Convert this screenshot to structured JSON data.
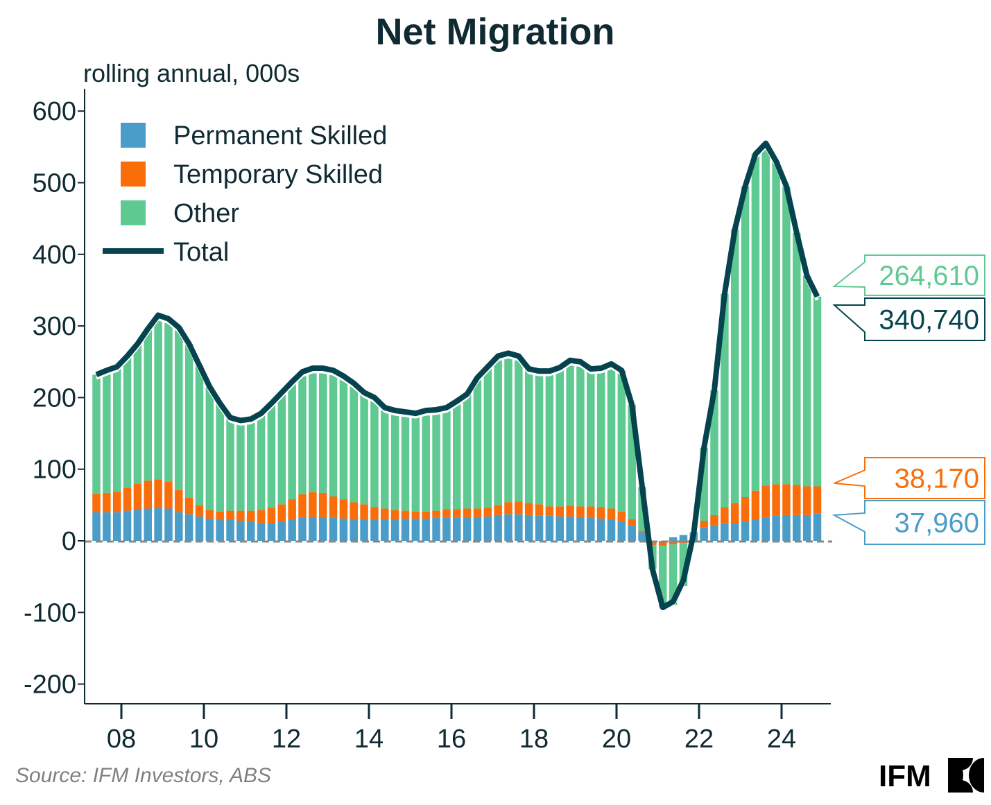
{
  "chart_data": {
    "type": "bar",
    "stacked": true,
    "title": "Net Migration",
    "subtitle": "rolling annual, 000s",
    "xlabel": "",
    "ylabel": "rolling annual, 000s",
    "ylim": [
      -220,
      620
    ],
    "yticks": [
      600,
      500,
      400,
      300,
      200,
      100,
      0,
      -100,
      -200
    ],
    "ytick_labels": [
      "600",
      "500",
      "400",
      "300",
      "200",
      "100",
      "0",
      "-100",
      "-200"
    ],
    "xticks_year_index": [
      2008,
      2010,
      2012,
      2014,
      2016,
      2018,
      2020,
      2022,
      2024
    ],
    "xtick_labels": [
      "08",
      "10",
      "12",
      "14",
      "16",
      "18",
      "20",
      "22",
      "24"
    ],
    "frequency": "quarterly",
    "start": "2007-Q3",
    "end": "2024-Q4",
    "grid": false,
    "legend_position": "top-left",
    "series": [
      {
        "name": "Permanent Skilled",
        "color": "#4a9cc9",
        "kind": "bar",
        "values": [
          40,
          40,
          40,
          42,
          44,
          45,
          46,
          45,
          40,
          37,
          34,
          31,
          29,
          29,
          28,
          27,
          25,
          25,
          27,
          30,
          32,
          33,
          33,
          32,
          31,
          30,
          30,
          30,
          30,
          30,
          31,
          31,
          31,
          32,
          32,
          32,
          33,
          33,
          34,
          36,
          37,
          37,
          36,
          35,
          35,
          34,
          34,
          33,
          32,
          31,
          30,
          27,
          22,
          12,
          -2,
          -2,
          5,
          8,
          12,
          19,
          21,
          24,
          25,
          27,
          30,
          32,
          35,
          36,
          36,
          36,
          38
        ]
      },
      {
        "name": "Temporary Skilled",
        "color": "#f96d0a",
        "kind": "bar",
        "values": [
          26,
          27,
          29,
          32,
          36,
          39,
          40,
          38,
          31,
          23,
          16,
          12,
          12,
          13,
          14,
          15,
          18,
          21,
          24,
          28,
          33,
          35,
          34,
          30,
          27,
          24,
          21,
          17,
          15,
          13,
          11,
          10,
          10,
          10,
          12,
          12,
          12,
          12,
          12,
          14,
          17,
          18,
          17,
          16,
          13,
          14,
          15,
          15,
          16,
          16,
          15,
          14,
          8,
          2,
          -4,
          -5,
          -5,
          -3,
          0,
          9,
          15,
          23,
          28,
          34,
          40,
          45,
          44,
          43,
          42,
          40,
          38
        ]
      },
      {
        "name": "Other",
        "color": "#5fc992",
        "kind": "bar",
        "values": [
          166,
          171,
          174,
          184,
          195,
          212,
          229,
          227,
          227,
          215,
          195,
          172,
          151,
          130,
          126,
          128,
          135,
          146,
          156,
          164,
          171,
          173,
          174,
          176,
          172,
          166,
          156,
          153,
          141,
          139,
          138,
          137,
          141,
          141,
          142,
          151,
          160,
          183,
          197,
          208,
          208,
          203,
          187,
          186,
          189,
          194,
          203,
          202,
          192,
          194,
          202,
          197,
          160,
          61,
          -34,
          -86,
          -85,
          -60,
          -2,
          102,
          174,
          298,
          382,
          434,
          470,
          478,
          451,
          416,
          352,
          294,
          265
        ]
      },
      {
        "name": "Total",
        "color": "#05434f",
        "kind": "line",
        "values": [
          232,
          238,
          243,
          258,
          275,
          296,
          315,
          310,
          298,
          275,
          245,
          215,
          192,
          172,
          168,
          170,
          178,
          192,
          207,
          222,
          236,
          241,
          241,
          238,
          230,
          220,
          207,
          200,
          186,
          182,
          180,
          178,
          182,
          183,
          186,
          195,
          205,
          228,
          243,
          258,
          262,
          258,
          240,
          237,
          237,
          242,
          252,
          250,
          240,
          241,
          247,
          238,
          190,
          75,
          -40,
          -93,
          -85,
          -55,
          10,
          130,
          210,
          345,
          435,
          495,
          540,
          555,
          530,
          495,
          430,
          370,
          341
        ]
      }
    ],
    "latest_labels": [
      {
        "series": "Other",
        "text": "264,610",
        "color": "#5fc992"
      },
      {
        "series": "Total",
        "text": "340,740",
        "color": "#05434f"
      },
      {
        "series": "Temporary Skilled",
        "text": "38,170",
        "color": "#f96d0a"
      },
      {
        "series": "Permanent Skilled",
        "text": "37,960",
        "color": "#4a9cc9"
      }
    ]
  },
  "legend": {
    "items": [
      {
        "label": "Permanent Skilled",
        "color": "#4a9cc9"
      },
      {
        "label": "Temporary Skilled",
        "color": "#f96d0a"
      },
      {
        "label": "Other",
        "color": "#5fc992"
      },
      {
        "label": "Total",
        "color": "#05434f"
      }
    ]
  },
  "footer": {
    "source": "Source: IFM Investors, ABS",
    "logo_text": "IFM"
  },
  "colors": {
    "axis": "#0f2a33",
    "zero_line": "#888888"
  }
}
